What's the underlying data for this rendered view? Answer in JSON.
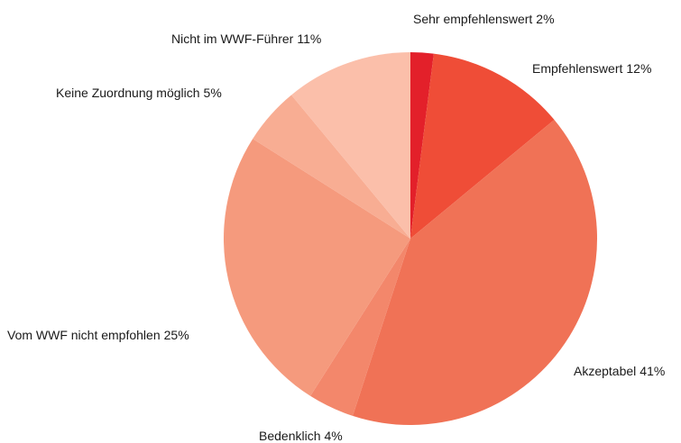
{
  "chart_data": {
    "type": "pie",
    "categories": [
      "Sehr empfehlenswert",
      "Empfehlenswert",
      "Akzeptabel",
      "Bedenklich",
      "Vom WWF nicht empfohlen",
      "Keine Zuordnung möglich",
      "Nicht im WWF-Führer"
    ],
    "values": [
      2,
      12,
      41,
      4,
      25,
      5,
      11
    ],
    "value_labels": [
      "2%",
      "12%",
      "41%",
      "4%",
      "25%",
      "5%",
      "11%"
    ],
    "colors": [
      "#e3202a",
      "#ef4d37",
      "#f07256",
      "#f3876b",
      "#f59a7d",
      "#f8ad93",
      "#fbbfaa"
    ]
  }
}
